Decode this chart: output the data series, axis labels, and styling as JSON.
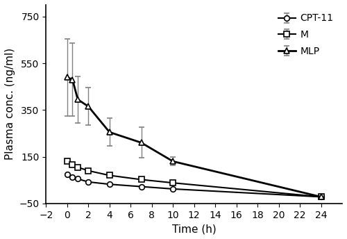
{
  "title": "",
  "xlabel": "Time (h)",
  "ylabel": "Plasma conc. (ng/ml)",
  "xlim": [
    -2,
    26
  ],
  "ylim": [
    -50,
    800
  ],
  "xticks": [
    -2,
    0,
    2,
    4,
    6,
    8,
    10,
    12,
    14,
    16,
    18,
    20,
    22,
    24
  ],
  "yticks": [
    -50,
    150,
    350,
    550,
    750
  ],
  "series": [
    {
      "key": "CPT11",
      "label": "CPT-11",
      "x": [
        0,
        0.5,
        1,
        2,
        4,
        7,
        10,
        24
      ],
      "y": [
        75,
        62,
        55,
        42,
        32,
        22,
        12,
        -22
      ],
      "yerr": [
        null,
        null,
        null,
        null,
        null,
        null,
        null,
        null
      ],
      "marker": "o",
      "linewidth": 1.5
    },
    {
      "key": "M",
      "label": "M",
      "x": [
        0,
        0.5,
        1,
        2,
        4,
        7,
        10,
        24
      ],
      "y": [
        130,
        115,
        105,
        90,
        70,
        52,
        38,
        -22
      ],
      "yerr": [
        null,
        null,
        null,
        null,
        null,
        null,
        null,
        null
      ],
      "marker": "s",
      "linewidth": 1.5
    },
    {
      "key": "MLP",
      "label": "MLP",
      "x": [
        0,
        0.5,
        1,
        2,
        4,
        7,
        10,
        24
      ],
      "y": [
        490,
        480,
        395,
        365,
        255,
        210,
        130,
        -22
      ],
      "yerr": [
        165,
        155,
        100,
        80,
        60,
        65,
        18,
        null
      ],
      "marker": "^",
      "linewidth": 2.0
    }
  ],
  "background_color": "#ffffff",
  "figure_width": 5.0,
  "figure_height": 3.44,
  "dpi": 100
}
